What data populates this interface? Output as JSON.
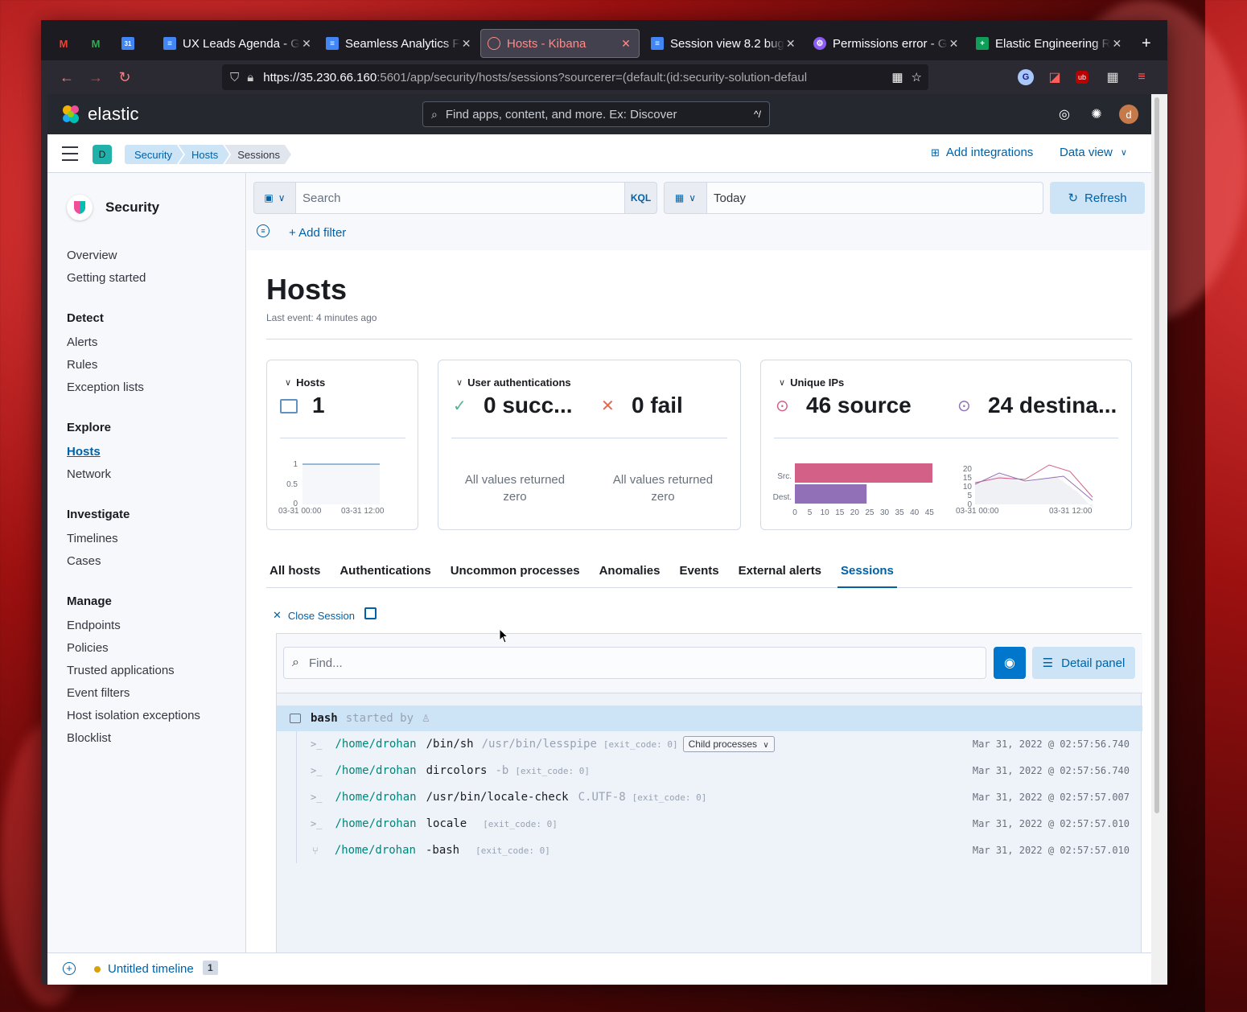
{
  "browser": {
    "tabs": [
      {
        "title": "",
        "icon": "gmail-icon",
        "color": "#ea4335"
      },
      {
        "title": "",
        "icon": "gmail-icon",
        "color": "#ea4335"
      },
      {
        "title": "",
        "icon": "calendar-icon",
        "color": "#4285f4"
      },
      {
        "title": "UX Leads Agenda - G",
        "icon": "docs-icon",
        "color": "#4285f4"
      },
      {
        "title": "Seamless Analytics F",
        "icon": "docs-icon",
        "color": "#4285f4"
      },
      {
        "title": "Hosts - Kibana",
        "icon": "kibana-icon",
        "color": "#ff8a8a"
      },
      {
        "title": "Session view 8.2 bug",
        "icon": "docs-icon",
        "color": "#4285f4"
      },
      {
        "title": "Permissions error - G",
        "icon": "extension-icon",
        "color": "#8b5cf6"
      },
      {
        "title": "Elastic Engineering R",
        "icon": "sheets-icon",
        "color": "#0f9d58"
      }
    ],
    "url_host": "https://35.230.66.160",
    "url_rest": ":5601/app/security/hosts/sessions?sourcerer=(default:(id:security-solution-defaul"
  },
  "header": {
    "logo_text": "elastic",
    "search_placeholder": "Find apps, content, and more. Ex: Discover",
    "search_shortcut": "^/",
    "avatar_letter": "d"
  },
  "subheader": {
    "space_letter": "D",
    "breadcrumbs": [
      "Security",
      "Hosts",
      "Sessions"
    ],
    "add_integrations": "Add integrations",
    "data_view": "Data view"
  },
  "sidenav": {
    "title": "Security",
    "top": [
      "Overview",
      "Getting started"
    ],
    "groups": [
      {
        "label": "Detect",
        "items": [
          "Alerts",
          "Rules",
          "Exception lists"
        ]
      },
      {
        "label": "Explore",
        "items": [
          "Hosts",
          "Network"
        ]
      },
      {
        "label": "Investigate",
        "items": [
          "Timelines",
          "Cases"
        ]
      },
      {
        "label": "Manage",
        "items": [
          "Endpoints",
          "Policies",
          "Trusted applications",
          "Event filters",
          "Host isolation exceptions",
          "Blocklist"
        ]
      }
    ]
  },
  "querybar": {
    "search_placeholder": "Search",
    "kql": "KQL",
    "date": "Today",
    "refresh": "Refresh",
    "add_filter": "+ Add filter"
  },
  "page": {
    "title": "Hosts",
    "last_event": "Last event: 4 minutes ago"
  },
  "kpis": {
    "hosts": {
      "label": "Hosts",
      "value": "1",
      "y_ticks": [
        "1",
        "0.5",
        "0"
      ],
      "x_ticks": [
        "03-31 00:00",
        "03-31 12:00"
      ]
    },
    "auth": {
      "label": "User authentications",
      "success": "0 succ...",
      "fail": "0 fail",
      "empty": "All values returned zero"
    },
    "ips": {
      "label": "Unique IPs",
      "source": "46 source",
      "dest": "24 destina...",
      "bar_labels": [
        "Src.",
        "Dest."
      ],
      "bar_values": [
        46,
        24
      ],
      "bar_ticks": [
        "0",
        "5",
        "10",
        "15",
        "20",
        "25",
        "30",
        "35",
        "40",
        "45"
      ],
      "line_y_ticks": [
        "20",
        "15",
        "10",
        "5",
        "0"
      ],
      "line_x_ticks": [
        "03-31 00:00",
        "03-31 12:00"
      ],
      "colors": {
        "src": "#d36086",
        "dest": "#9170b8"
      }
    }
  },
  "tabs": [
    "All hosts",
    "Authentications",
    "Uncommon processes",
    "Anomalies",
    "Events",
    "External alerts",
    "Sessions"
  ],
  "session": {
    "close": "Close Session",
    "find_placeholder": "Find...",
    "detail_panel": "Detail panel",
    "root": {
      "name": "bash",
      "started_by": "started by"
    },
    "rows": [
      {
        "dir": "/home/drohan",
        "cmd": "/bin/sh",
        "args": "/usr/bin/lesspipe",
        "exit": "[exit_code: 0]",
        "badge": "Child processes",
        "time": "Mar 31, 2022 @ 02:57:56.740"
      },
      {
        "dir": "/home/drohan",
        "cmd": "dircolors",
        "args": "-b",
        "exit": "[exit_code: 0]",
        "badge": "",
        "time": "Mar 31, 2022 @ 02:57:56.740"
      },
      {
        "dir": "/home/drohan",
        "cmd": "/usr/bin/locale-check",
        "args": "C.UTF-8",
        "exit": "[exit_code: 0]",
        "badge": "",
        "time": "Mar 31, 2022 @ 02:57:57.007"
      },
      {
        "dir": "/home/drohan",
        "cmd": "locale",
        "args": "",
        "exit": "[exit_code: 0]",
        "badge": "",
        "time": "Mar 31, 2022 @ 02:57:57.010"
      },
      {
        "dir": "/home/drohan",
        "cmd": "-bash",
        "args": "",
        "exit": "[exit_code: 0]",
        "badge": "",
        "time": "Mar 31, 2022 @ 02:57:57.010"
      }
    ]
  },
  "timeline": {
    "label": "Untitled timeline",
    "count": "1"
  }
}
